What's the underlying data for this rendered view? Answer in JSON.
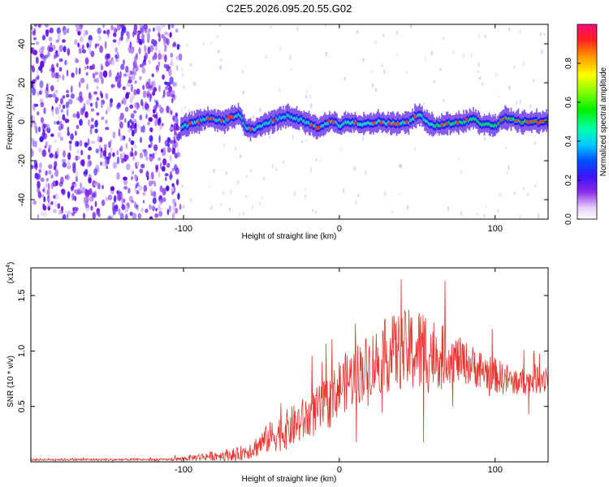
{
  "title": "C2E5.2026.095.20.55.G02",
  "chart_data": [
    {
      "type": "heatmap",
      "title": "C2E5.2026.095.20.55.G02",
      "xlabel": "Height of straight line (km)",
      "ylabel": "Frequency (Hz)",
      "xlim": [
        -198,
        134
      ],
      "ylim": [
        -50,
        50
      ],
      "xticks": [
        -100,
        0,
        100
      ],
      "yticks": [
        -40,
        -20,
        0,
        20,
        40
      ],
      "colorbar": {
        "label": "Normalized spectral amplitude",
        "range": [
          0.0,
          1.0
        ],
        "ticks": [
          0.0,
          0.2,
          0.4,
          0.6,
          0.8
        ]
      },
      "noise_region_x": [
        -198,
        -102
      ],
      "signal_line": {
        "x": [
          -102,
          -95,
          -85,
          -75,
          -65,
          -60,
          -55,
          -45,
          -35,
          -25,
          -15,
          -5,
          0,
          5,
          15,
          25,
          35,
          45,
          50,
          60,
          70,
          80,
          85,
          90,
          100,
          105,
          115,
          125,
          134
        ],
        "hz": [
          -3,
          -1,
          2,
          0,
          4,
          -3,
          -4,
          0,
          3,
          1,
          -3,
          0,
          -2,
          0,
          -1,
          0,
          -1,
          0,
          4,
          -2,
          -1,
          0,
          2,
          -1,
          -2,
          2,
          0,
          0,
          0
        ]
      }
    },
    {
      "type": "line",
      "xlabel": "Height of straight line (km)",
      "ylabel": "SNR (10 * v/v)",
      "scale_label": "(x10",
      "scale_exp": "4",
      "xlim": [
        -198,
        134
      ],
      "ylim": [
        0,
        1.75
      ],
      "xticks": [
        -100,
        0,
        100
      ],
      "yticks": [
        0.5,
        1.0,
        1.5
      ],
      "ytick_labels": [
        "0.5",
        "1.0",
        "1.5"
      ],
      "color": "#e8342c",
      "envelope": {
        "x": [
          -198,
          -150,
          -110,
          -100,
          -85,
          -75,
          -65,
          -55,
          -45,
          -35,
          -25,
          -15,
          -5,
          0,
          10,
          20,
          30,
          40,
          50,
          55,
          60,
          70,
          80,
          90,
          100,
          110,
          120,
          134
        ],
        "mean": [
          0.02,
          0.02,
          0.02,
          0.03,
          0.05,
          0.06,
          0.07,
          0.12,
          0.22,
          0.28,
          0.36,
          0.45,
          0.55,
          0.68,
          0.78,
          0.88,
          0.96,
          1.0,
          1.0,
          1.0,
          0.98,
          0.95,
          0.9,
          0.84,
          0.78,
          0.73,
          0.72,
          0.78
        ],
        "amp": [
          0.01,
          0.01,
          0.01,
          0.02,
          0.04,
          0.05,
          0.06,
          0.09,
          0.14,
          0.18,
          0.2,
          0.22,
          0.24,
          0.26,
          0.28,
          0.3,
          0.34,
          0.36,
          0.4,
          0.42,
          0.34,
          0.24,
          0.2,
          0.18,
          0.16,
          0.14,
          0.12,
          0.16
        ]
      }
    }
  ]
}
